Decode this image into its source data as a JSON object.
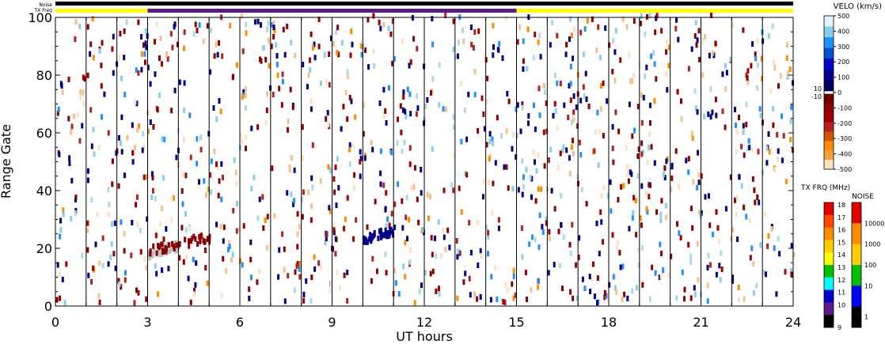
{
  "header": {
    "noise_label": "Noise",
    "txfreq_label": "TX Freq"
  },
  "chart_data": {
    "type": "heatmap",
    "xlabel": "UT hours",
    "ylabel": "Range Gate",
    "xlim": [
      0,
      24
    ],
    "ylim": [
      0,
      100
    ],
    "x_ticks": [
      0,
      3,
      6,
      9,
      12,
      15,
      18,
      21,
      24
    ],
    "y_ticks": [
      0,
      20,
      40,
      60,
      80,
      100
    ],
    "scan_boundaries_hours": [
      1,
      2,
      3,
      4,
      5,
      6,
      7,
      8,
      9,
      10,
      11,
      12,
      13,
      14,
      15,
      16,
      17,
      18,
      19,
      20,
      21,
      22,
      23,
      24
    ],
    "grid": false,
    "noise_bar": {
      "color": "#000000"
    },
    "txfreq_bar": [
      {
        "start": 0,
        "end": 3,
        "color": "#ffff00"
      },
      {
        "start": 3,
        "end": 15,
        "color": "#5a1a8c"
      },
      {
        "start": 15,
        "end": 24,
        "color": "#ffff00"
      }
    ],
    "features": [
      {
        "name": "ground scatter band",
        "x": [
          3,
          4
        ],
        "y": [
          17,
          20
        ],
        "color": "#bfbfbf"
      },
      {
        "name": "negative velocity band",
        "x": [
          3,
          5
        ],
        "y": [
          18,
          23
        ],
        "color": "#8b0000"
      },
      {
        "name": "positive velocity cluster",
        "x": [
          10,
          11
        ],
        "y": [
          22,
          25
        ],
        "color": "#00008b"
      }
    ],
    "velocity_scale": {
      "title": "VELO (km/s)",
      "ticks": [
        500,
        400,
        300,
        200,
        100,
        0,
        -100,
        -200,
        -300,
        -400,
        -500
      ],
      "threshold_labels": [
        "10",
        "-10"
      ],
      "positive_colors": [
        "#e0f4ff",
        "#87ceeb",
        "#1e90ff",
        "#0050c8",
        "#0000cd",
        "#00008b",
        "#000060"
      ],
      "negative_colors": [
        "#700000",
        "#8b0000",
        "#a00000",
        "#b22222",
        "#d35400",
        "#ff8c00",
        "#f5a040",
        "#fde0c0"
      ]
    },
    "txfreq_scale": {
      "title": "TX FRQ (MHz)",
      "ticks": [
        18,
        17,
        16,
        15,
        14,
        13,
        12,
        11,
        10,
        9
      ],
      "colors": [
        "#e00000",
        "#ff4500",
        "#ff8c00",
        "#ffcc00",
        "#ffff00",
        "#00c000",
        "#00ffff",
        "#0000cd",
        "#5a1a8c",
        "#000000"
      ]
    },
    "noise_scale": {
      "title": "NOISE",
      "ticks": [
        "10000",
        "1000",
        "100",
        "10",
        "1"
      ],
      "colors": [
        "#e00000",
        "#ff8c00",
        "#ffcc00",
        "#00c000",
        "#0000ff",
        "#000000"
      ]
    }
  }
}
